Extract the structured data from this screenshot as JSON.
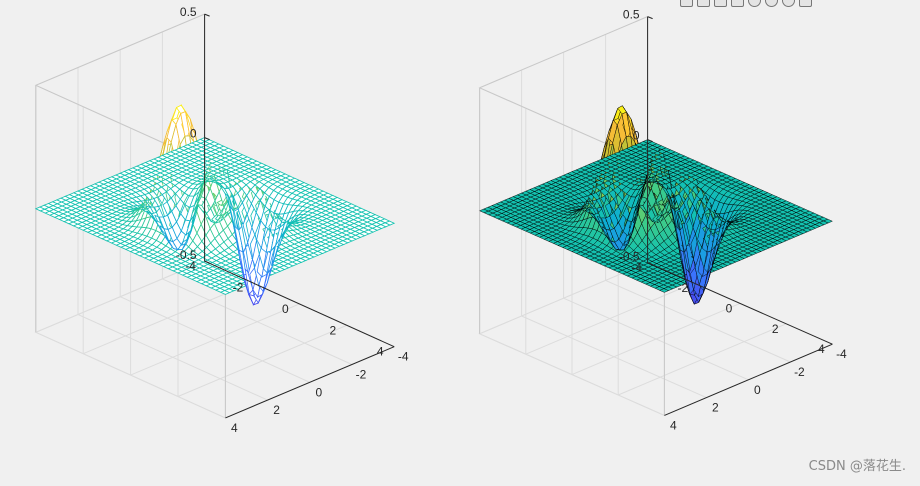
{
  "chart_data": [
    {
      "type": "surface",
      "style": "mesh",
      "function": "peaks(x,y)/16",
      "x_range": [
        -4,
        4
      ],
      "y_range": [
        -4,
        4
      ],
      "zlim": [
        -0.5,
        0.5
      ],
      "xticks": [
        "-4",
        "-2",
        "0",
        "2",
        "4"
      ],
      "yticks": [
        "-4",
        "-2",
        "0",
        "2",
        "4"
      ],
      "zticks": [
        "-0.5",
        "0",
        "0.5"
      ],
      "grid": true,
      "colormap": "parula"
    },
    {
      "type": "surface",
      "style": "surf",
      "function": "peaks(x,y)/16",
      "x_range": [
        -4,
        4
      ],
      "y_range": [
        -4,
        4
      ],
      "zlim": [
        -0.5,
        0.5
      ],
      "xticks": [
        "-4",
        "-2",
        "0",
        "2",
        "4"
      ],
      "yticks": [
        "-4",
        "-2",
        "0",
        "2",
        "4"
      ],
      "zticks": [
        "-0.5",
        "0",
        "0.5"
      ],
      "grid": true,
      "colormap": "parula",
      "edge_color": "#000000"
    }
  ],
  "watermark": "CSDN @落花生."
}
